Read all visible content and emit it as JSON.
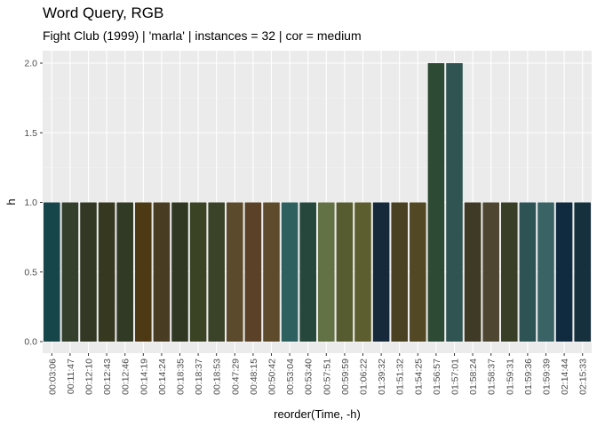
{
  "chart_data": {
    "type": "bar",
    "title": "Word Query, RGB",
    "subtitle": "Fight Club (1999)  |  'marla'  |  instances = 32  |  cor = medium",
    "xlabel": "reorder(Time, -h)",
    "ylabel": "h",
    "ylim": [
      0,
      2.1
    ],
    "yticks": [
      0.0,
      0.5,
      1.0,
      1.5,
      2.0
    ],
    "ytick_labels": [
      "0.0",
      "0.5",
      "1.0",
      "1.5",
      "2.0"
    ],
    "grid": true,
    "categories": [
      "00:03:06",
      "00:11:47",
      "00:12:10",
      "00:12:43",
      "00:12:46",
      "00:14:19",
      "00:14:24",
      "00:18:35",
      "00:18:37",
      "00:18:53",
      "00:47:29",
      "00:48:15",
      "00:50:42",
      "00:53:04",
      "00:53:40",
      "00:57:51",
      "00:59:59",
      "01:06:22",
      "01:39:32",
      "01:51:32",
      "01:54:25",
      "01:56:57",
      "01:57:01",
      "01:58:24",
      "01:58:37",
      "01:59:31",
      "01:59:36",
      "01:59:39",
      "02:14:44",
      "02:15:33"
    ],
    "values": [
      1,
      1,
      1,
      1,
      1,
      1,
      1,
      1,
      1,
      1,
      1,
      1,
      1,
      1,
      1,
      1,
      1,
      1,
      1,
      1,
      1,
      2,
      2,
      1,
      1,
      1,
      1,
      1,
      1,
      1
    ],
    "colors": [
      "#16454a",
      "#343f2c",
      "#323823",
      "#373820",
      "#313a24",
      "#4d3a15",
      "#483d22",
      "#303823",
      "#3a4424",
      "#3a4227",
      "#5c4a2d",
      "#5a4128",
      "#5d4b2b",
      "#2f6060",
      "#26473b",
      "#637245",
      "#565c30",
      "#5d5e2f",
      "#16293a",
      "#4a4123",
      "#534824",
      "#2d4a34",
      "#2f5452",
      "#3f3a26",
      "#4e4631",
      "#393f27",
      "#2d5355",
      "#3a6365",
      "#102a3f",
      "#16303d"
    ]
  }
}
